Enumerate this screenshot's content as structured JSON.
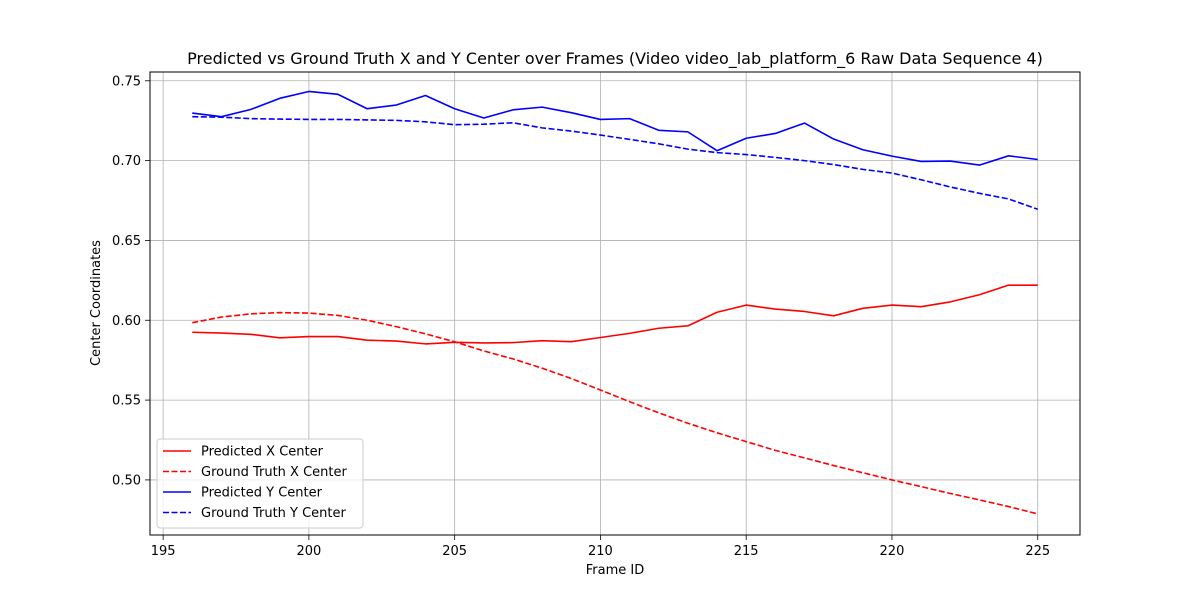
{
  "chart_data": {
    "type": "line",
    "title": "Predicted vs Ground Truth X and Y Center over Frames (Video video_lab_platform_6 Raw Data Sequence 4)",
    "xlabel": "Frame ID",
    "ylabel": "Center Coordinates",
    "xlim": [
      194.55,
      226.45
    ],
    "ylim": [
      0.4655,
      0.7555
    ],
    "xticks": [
      195,
      200,
      205,
      210,
      215,
      220,
      225
    ],
    "xtick_labels": [
      "195",
      "200",
      "205",
      "210",
      "215",
      "220",
      "225"
    ],
    "yticks": [
      0.5,
      0.55,
      0.6,
      0.65,
      0.7,
      0.75
    ],
    "ytick_labels": [
      "0.50",
      "0.55",
      "0.60",
      "0.65",
      "0.70",
      "0.75"
    ],
    "grid": true,
    "legend_position": "lower-left",
    "x": [
      196,
      197,
      198,
      199,
      200,
      201,
      202,
      203,
      204,
      205,
      206,
      207,
      208,
      209,
      210,
      211,
      212,
      213,
      214,
      215,
      216,
      217,
      218,
      219,
      220,
      221,
      222,
      223,
      224,
      225
    ],
    "series": [
      {
        "name": "Predicted X Center",
        "color": "#ff0000",
        "style": "solid",
        "values": [
          0.5925,
          0.592,
          0.5912,
          0.589,
          0.5898,
          0.5898,
          0.5875,
          0.587,
          0.5852,
          0.5862,
          0.5858,
          0.586,
          0.5872,
          0.5866,
          0.5892,
          0.5918,
          0.595,
          0.5965,
          0.605,
          0.6095,
          0.607,
          0.6055,
          0.6028,
          0.6075,
          0.6095,
          0.6085,
          0.6115,
          0.616,
          0.622,
          0.622
        ]
      },
      {
        "name": "Ground Truth X Center",
        "color": "#ff0000",
        "style": "dashed",
        "values": [
          0.5985,
          0.602,
          0.604,
          0.6048,
          0.6045,
          0.603,
          0.6,
          0.596,
          0.5915,
          0.5865,
          0.5808,
          0.5758,
          0.57,
          0.5635,
          0.5563,
          0.549,
          0.542,
          0.5355,
          0.5295,
          0.524,
          0.5185,
          0.5138,
          0.509,
          0.5045,
          0.5,
          0.4958,
          0.4915,
          0.4875,
          0.4833,
          0.4787
        ]
      },
      {
        "name": "Predicted Y Center",
        "color": "#0000ff",
        "style": "solid",
        "values": [
          0.7298,
          0.7275,
          0.732,
          0.739,
          0.7433,
          0.7415,
          0.7325,
          0.7348,
          0.7408,
          0.7325,
          0.7267,
          0.7318,
          0.7335,
          0.73,
          0.7258,
          0.7263,
          0.719,
          0.718,
          0.7062,
          0.714,
          0.717,
          0.7235,
          0.7135,
          0.7068,
          0.7028,
          0.6995,
          0.6997,
          0.6972,
          0.703,
          0.7007
        ]
      },
      {
        "name": "Ground Truth Y Center",
        "color": "#0000ff",
        "style": "dashed",
        "values": [
          0.7275,
          0.7272,
          0.7263,
          0.726,
          0.7258,
          0.7258,
          0.7255,
          0.7252,
          0.7243,
          0.7225,
          0.7228,
          0.7237,
          0.7205,
          0.7185,
          0.716,
          0.7133,
          0.7105,
          0.7072,
          0.705,
          0.7038,
          0.702,
          0.7,
          0.6975,
          0.6945,
          0.6922,
          0.688,
          0.6835,
          0.6795,
          0.676,
          0.6695
        ]
      }
    ]
  }
}
